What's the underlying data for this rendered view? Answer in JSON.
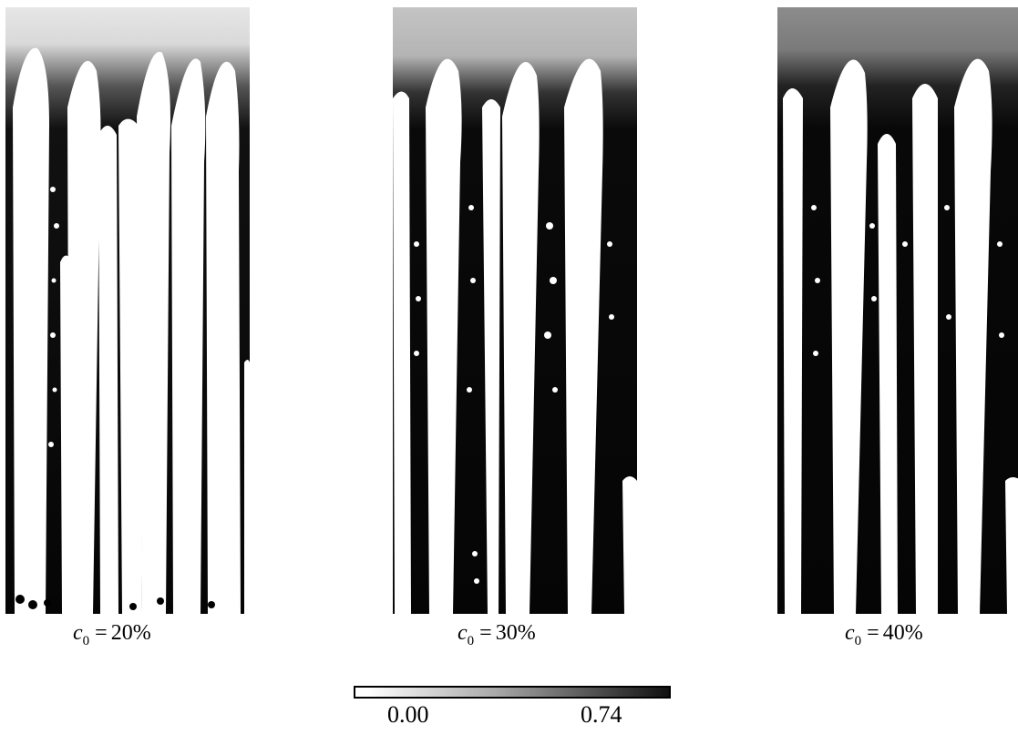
{
  "panels": [
    {
      "caption_var": "c",
      "caption_sub": "0",
      "caption_eq": "=",
      "caption_value": "20%",
      "background_top": "#e6e6e6"
    },
    {
      "caption_var": "c",
      "caption_sub": "0",
      "caption_eq": "=",
      "caption_value": "30%",
      "background_top": "#c4c4c4"
    },
    {
      "caption_var": "c",
      "caption_sub": "0",
      "caption_eq": "=",
      "caption_value": "40%",
      "background_top": "#8c8c8c"
    }
  ],
  "colorbar": {
    "ticks": [
      "0.00",
      "0.74"
    ],
    "colors": {
      "low": "#ffffff",
      "high": "#101010"
    }
  }
}
